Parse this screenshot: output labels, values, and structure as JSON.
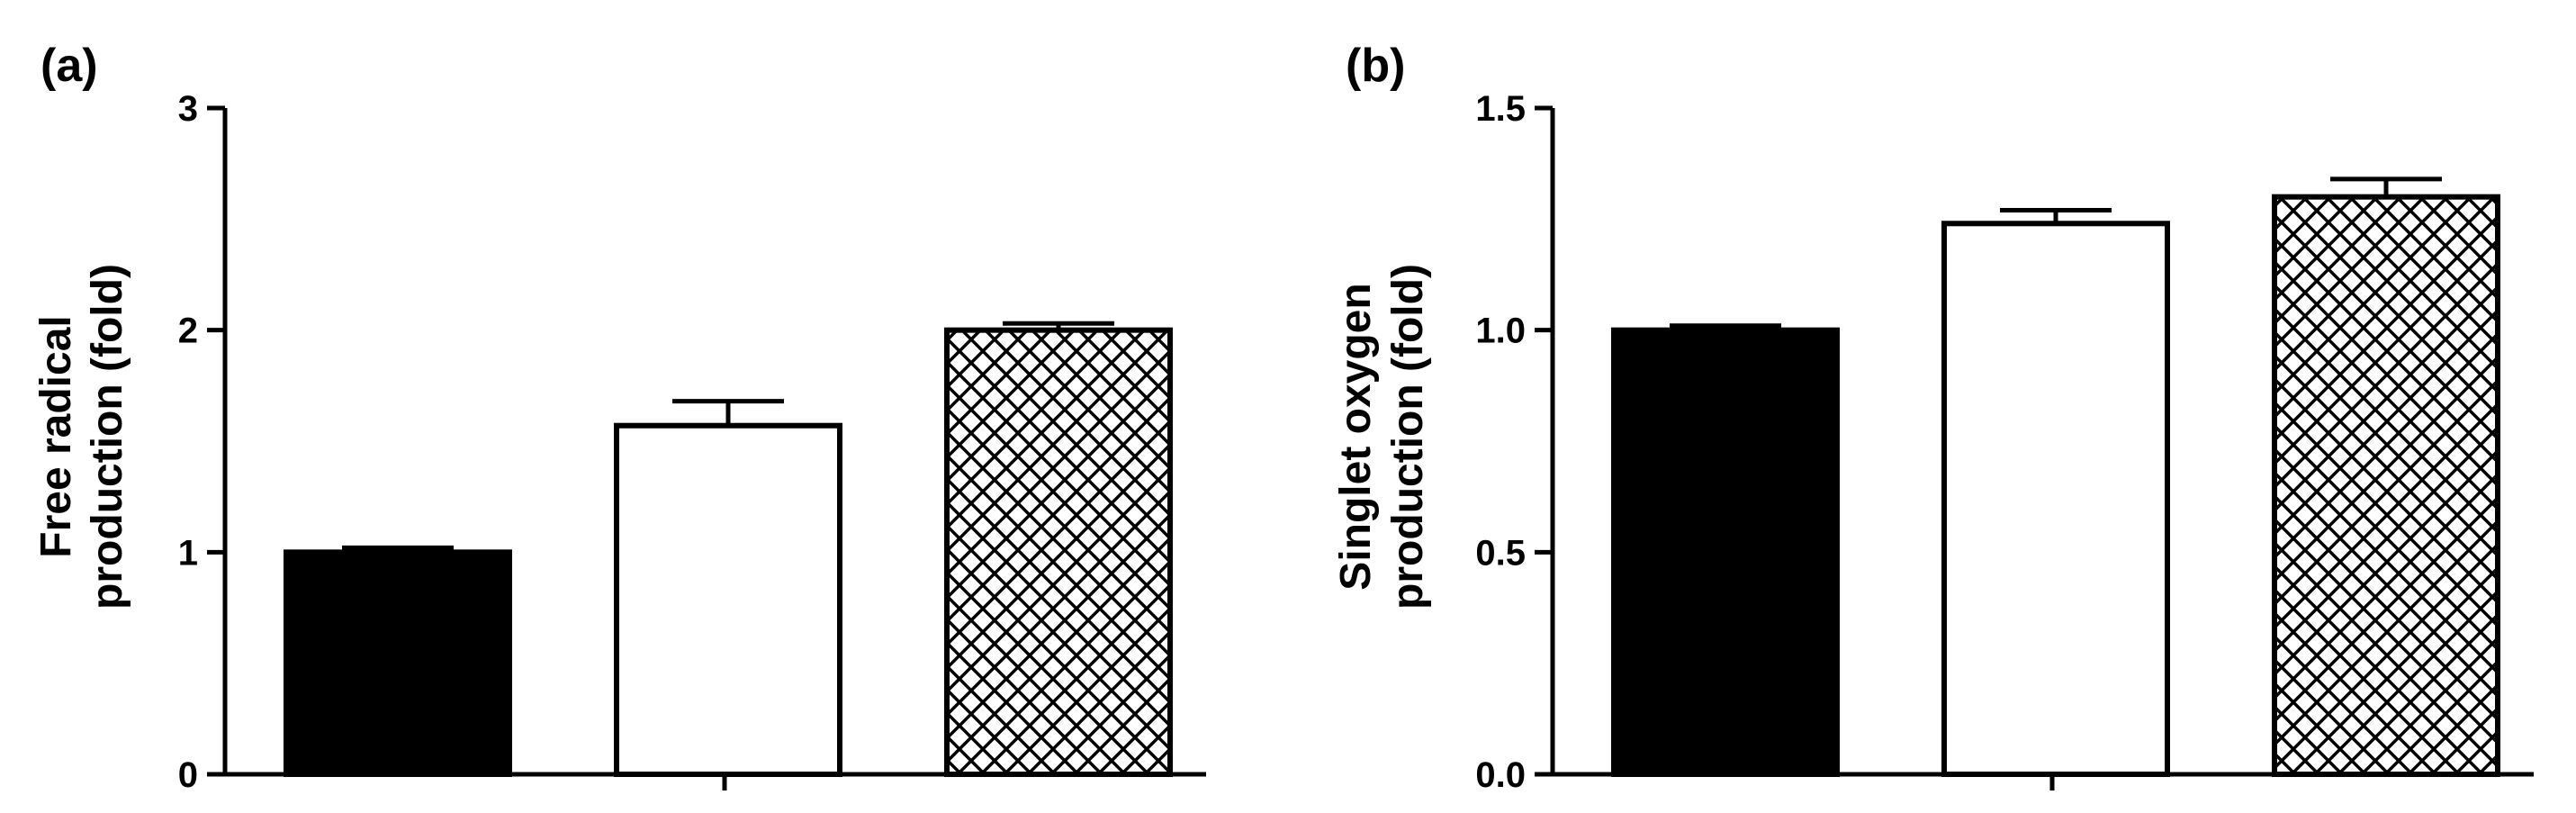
{
  "chart_data": [
    {
      "panel_label": "(a)",
      "type": "bar",
      "ylabel": [
        "Free radical",
        "production (fold)"
      ],
      "ylim": [
        0,
        3
      ],
      "yticks": [
        0,
        1,
        2,
        3
      ],
      "ytick_labels": [
        "0",
        "1",
        "2",
        "3"
      ],
      "bars": [
        {
          "value": 1.0,
          "error": 0.02,
          "fill": "solid-black"
        },
        {
          "value": 1.57,
          "error": 0.11,
          "fill": "white"
        },
        {
          "value": 2.0,
          "error": 0.03,
          "fill": "crosshatch"
        }
      ]
    },
    {
      "panel_label": "(b)",
      "type": "bar",
      "ylabel": [
        "Singlet oxygen",
        "production (fold)"
      ],
      "ylim": [
        0,
        1.5
      ],
      "yticks": [
        0,
        0.5,
        1.0,
        1.5
      ],
      "ytick_labels": [
        "0.0",
        "0.5",
        "1.0",
        "1.5"
      ],
      "bars": [
        {
          "value": 1.0,
          "error": 0.01,
          "fill": "solid-black"
        },
        {
          "value": 1.24,
          "error": 0.03,
          "fill": "white"
        },
        {
          "value": 1.3,
          "error": 0.04,
          "fill": "crosshatch"
        }
      ]
    }
  ],
  "colors": {
    "ink": "#000000",
    "background": "#ffffff"
  }
}
